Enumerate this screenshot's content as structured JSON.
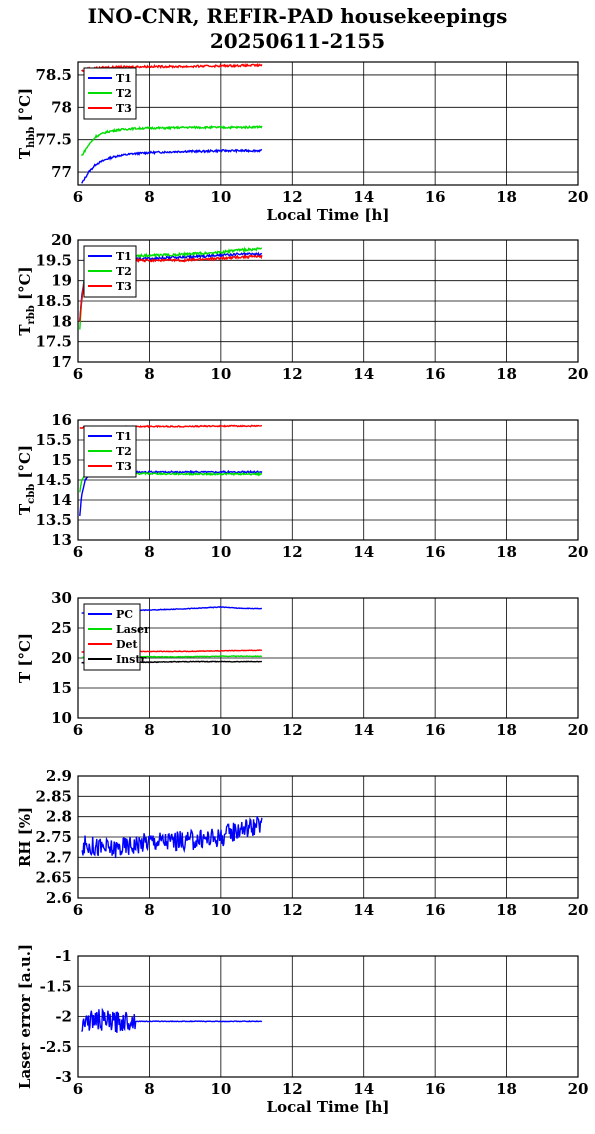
{
  "title_lines": [
    "INO-CNR, REFIR-PAD housekeepings",
    "20250611-2155"
  ],
  "chart_data": [
    {
      "type": "line",
      "ylabel": "T",
      "ylabel_sub": "hbb",
      "ylabel_unit": " [°C]",
      "xlabel": "Local Time [h]",
      "xlim": [
        6,
        20
      ],
      "xticks": [
        6,
        8,
        10,
        12,
        14,
        16,
        18,
        20
      ],
      "ylim": [
        76.8,
        78.7
      ],
      "yticks": [
        77,
        77.5,
        78,
        78.5
      ],
      "ytick_labels": [
        "77",
        "77.5",
        "78",
        "78.5"
      ],
      "grid": true,
      "legend": "top-left",
      "series": [
        {
          "name": "T1",
          "color": "#0000ff",
          "x": [
            6.1,
            6.3,
            6.5,
            6.8,
            7.1,
            7.5,
            8.0,
            8.5,
            9.0,
            9.5,
            10.0,
            10.5,
            11.15
          ],
          "y": [
            76.82,
            77.0,
            77.12,
            77.2,
            77.25,
            77.28,
            77.3,
            77.31,
            77.32,
            77.32,
            77.33,
            77.33,
            77.33
          ],
          "noise": 0.015
        },
        {
          "name": "T2",
          "color": "#00dd00",
          "x": [
            6.1,
            6.3,
            6.5,
            6.8,
            7.1,
            7.5,
            8.0,
            8.5,
            9.0,
            9.5,
            10.0,
            10.5,
            11.15
          ],
          "y": [
            77.25,
            77.42,
            77.55,
            77.62,
            77.65,
            77.67,
            77.68,
            77.68,
            77.69,
            77.69,
            77.69,
            77.69,
            77.7
          ],
          "noise": 0.015
        },
        {
          "name": "T3",
          "color": "#ff0000",
          "x": [
            6.1,
            6.3,
            6.6,
            7.0,
            8.0,
            9.0,
            10.0,
            11.15
          ],
          "y": [
            78.56,
            78.6,
            78.61,
            78.62,
            78.63,
            78.63,
            78.64,
            78.65
          ],
          "noise": 0.015
        }
      ]
    },
    {
      "type": "line",
      "ylabel": "T",
      "ylabel_sub": "rbb",
      "ylabel_unit": " [°C]",
      "xlabel": "",
      "xlim": [
        6,
        20
      ],
      "xticks": [
        6,
        8,
        10,
        12,
        14,
        16,
        18,
        20
      ],
      "ylim": [
        17,
        20
      ],
      "yticks": [
        17,
        17.5,
        18,
        18.5,
        19,
        19.5,
        20
      ],
      "ytick_labels": [
        "17",
        "17.5",
        "18",
        "18.5",
        "19",
        "19.5",
        "20"
      ],
      "grid": true,
      "legend": "top-left",
      "series": [
        {
          "name": "T1",
          "color": "#0000ff",
          "x": [
            6.05,
            6.1,
            6.2,
            6.5,
            7.0,
            8.0,
            9.0,
            10.0,
            10.5,
            11.15
          ],
          "y": [
            18.0,
            18.6,
            19.2,
            19.45,
            19.52,
            19.55,
            19.58,
            19.62,
            19.65,
            19.65
          ],
          "noise": 0.03
        },
        {
          "name": "T2",
          "color": "#00dd00",
          "x": [
            6.05,
            6.1,
            6.2,
            6.5,
            7.0,
            8.0,
            9.0,
            10.0,
            10.5,
            11.15
          ],
          "y": [
            17.8,
            18.5,
            19.2,
            19.5,
            19.58,
            19.62,
            19.65,
            19.7,
            19.75,
            19.78
          ],
          "noise": 0.03
        },
        {
          "name": "T3",
          "color": "#ff0000",
          "x": [
            6.05,
            6.1,
            6.2,
            6.5,
            7.0,
            8.0,
            9.0,
            10.0,
            10.5,
            11.15
          ],
          "y": [
            18.0,
            18.5,
            19.1,
            19.4,
            19.48,
            19.5,
            19.5,
            19.55,
            19.58,
            19.6
          ],
          "noise": 0.03
        }
      ]
    },
    {
      "type": "line",
      "ylabel": "T",
      "ylabel_sub": "cbb",
      "ylabel_unit": " [°C]",
      "xlabel": "",
      "xlim": [
        6,
        20
      ],
      "xticks": [
        6,
        8,
        10,
        12,
        14,
        16,
        18,
        20
      ],
      "ylim": [
        13,
        16
      ],
      "yticks": [
        13,
        13.5,
        14,
        14.5,
        15,
        15.5,
        16
      ],
      "ytick_labels": [
        "13",
        "13.5",
        "14",
        "14.5",
        "15",
        "15.5",
        "16"
      ],
      "grid": true,
      "legend": "top-left",
      "series": [
        {
          "name": "T1",
          "color": "#0000ff",
          "x": [
            6.05,
            6.1,
            6.2,
            6.4,
            7.0,
            8.0,
            9.0,
            10.0,
            11.15
          ],
          "y": [
            13.6,
            14.1,
            14.5,
            14.68,
            14.7,
            14.7,
            14.7,
            14.7,
            14.7
          ],
          "noise": 0.02
        },
        {
          "name": "T2",
          "color": "#00dd00",
          "x": [
            6.05,
            6.1,
            6.2,
            6.4,
            7.0,
            8.0,
            9.0,
            10.0,
            11.15
          ],
          "y": [
            14.2,
            14.5,
            14.62,
            14.65,
            14.66,
            14.66,
            14.65,
            14.65,
            14.65
          ],
          "noise": 0.02
        },
        {
          "name": "T3",
          "color": "#ff0000",
          "x": [
            6.05,
            6.2,
            7.0,
            8.0,
            9.0,
            10.0,
            11.15
          ],
          "y": [
            15.8,
            15.82,
            15.83,
            15.84,
            15.84,
            15.85,
            15.85
          ],
          "noise": 0.015
        }
      ]
    },
    {
      "type": "line",
      "ylabel": "T [°C]",
      "ylabel_sub": "",
      "ylabel_unit": "",
      "xlabel": "",
      "xlim": [
        6,
        20
      ],
      "xticks": [
        6,
        8,
        10,
        12,
        14,
        16,
        18,
        20
      ],
      "ylim": [
        10,
        30
      ],
      "yticks": [
        10,
        15,
        20,
        25,
        30
      ],
      "ytick_labels": [
        "10",
        "15",
        "20",
        "25",
        "30"
      ],
      "grid": true,
      "legend": "top-left",
      "series": [
        {
          "name": "PC",
          "color": "#0000ff",
          "x": [
            6.1,
            7.0,
            8.0,
            9.0,
            10.0,
            10.5,
            11.15
          ],
          "y": [
            27.5,
            27.8,
            28.0,
            28.2,
            28.5,
            28.3,
            28.2
          ],
          "noise": 0.05
        },
        {
          "name": "Laser",
          "color": "#00dd00",
          "x": [
            6.1,
            7.0,
            8.0,
            9.0,
            10.0,
            11.15
          ],
          "y": [
            20.1,
            20.2,
            20.2,
            20.2,
            20.3,
            20.3
          ],
          "noise": 0.05
        },
        {
          "name": "Det",
          "color": "#ff0000",
          "x": [
            6.1,
            7.0,
            8.0,
            9.0,
            10.0,
            11.15
          ],
          "y": [
            21.0,
            21.1,
            21.1,
            21.1,
            21.2,
            21.3
          ],
          "noise": 0.05
        },
        {
          "name": "Instr",
          "color": "#000000",
          "x": [
            6.1,
            7.0,
            8.0,
            9.0,
            10.0,
            11.15
          ],
          "y": [
            19.2,
            19.3,
            19.3,
            19.4,
            19.4,
            19.4
          ],
          "noise": 0.05
        }
      ]
    },
    {
      "type": "line",
      "ylabel": "RH [%]",
      "ylabel_sub": "",
      "ylabel_unit": "",
      "xlabel": "",
      "xlim": [
        6,
        20
      ],
      "xticks": [
        6,
        8,
        10,
        12,
        14,
        16,
        18,
        20
      ],
      "ylim": [
        2.6,
        2.9
      ],
      "yticks": [
        2.6,
        2.65,
        2.7,
        2.75,
        2.8,
        2.85,
        2.9
      ],
      "ytick_labels": [
        "2.6",
        "2.65",
        "2.7",
        "2.75",
        "2.8",
        "2.85",
        "2.9"
      ],
      "grid": true,
      "legend": "none",
      "series": [
        {
          "name": "",
          "color": "#0000ff",
          "x": [
            6.1,
            7.0,
            8.0,
            9.0,
            10.0,
            10.5,
            11.15
          ],
          "y": [
            2.73,
            2.72,
            2.74,
            2.74,
            2.75,
            2.77,
            2.78
          ],
          "noise": 0.025
        }
      ]
    },
    {
      "type": "line",
      "ylabel": "Laser error [a.u.]",
      "ylabel_sub": "",
      "ylabel_unit": "",
      "xlabel": "Local Time [h]",
      "xlim": [
        6,
        20
      ],
      "xticks": [
        6,
        8,
        10,
        12,
        14,
        16,
        18,
        20
      ],
      "ylim": [
        -3,
        -1
      ],
      "yticks": [
        -3,
        -2.5,
        -2,
        -1.5,
        -1
      ],
      "ytick_labels": [
        "-3",
        "-2.5",
        "-2",
        "-1.5",
        "-1"
      ],
      "grid": true,
      "legend": "none",
      "series": [
        {
          "name": "",
          "color": "#0000ff",
          "x": [
            6.1,
            6.5,
            7.0,
            7.5,
            7.6,
            8.0,
            9.0,
            10.0,
            11.15
          ],
          "y": [
            -2.1,
            -2.05,
            -2.1,
            -2.05,
            -2.08,
            -2.08,
            -2.08,
            -2.08,
            -2.08
          ],
          "noise": 0.18,
          "noise_until": 7.6,
          "noise_after": 0.005
        }
      ]
    }
  ]
}
